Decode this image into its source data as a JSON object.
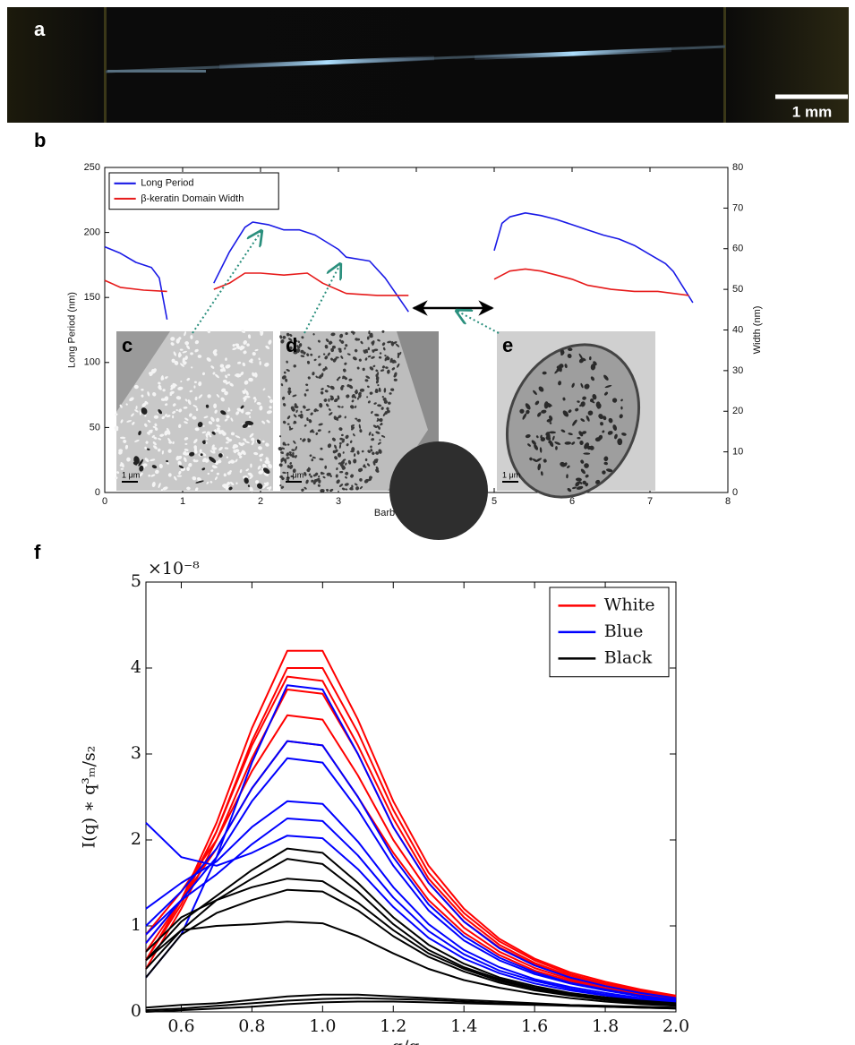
{
  "figure": {
    "panel_a": "a",
    "panel_b": "b",
    "panel_c": "c",
    "panel_d": "d",
    "panel_e": "e",
    "panel_f": "f",
    "scale_bar_a": "1 mm",
    "scale_bar_inset": "1 μm"
  },
  "chart_data": [
    {
      "type": "line",
      "xlabel": "Barb Position (mm)",
      "ylabel": "Long Period (nm)",
      "y2label": "Width (nm)",
      "xlim": [
        0,
        8
      ],
      "xticks": [
        0,
        1,
        2,
        3,
        4,
        5,
        6,
        7,
        8
      ],
      "ylim": [
        0,
        250
      ],
      "yticks": [
        0,
        50,
        100,
        150,
        200,
        250
      ],
      "y2lim": [
        0,
        80
      ],
      "y2ticks": [
        0,
        10,
        20,
        30,
        40,
        50,
        60,
        70,
        80
      ],
      "legend": "upper left",
      "series": [
        {
          "name": "Long Period",
          "color": "#1a1ae6",
          "x": [
            0,
            0.2,
            0.4,
            0.6,
            0.7,
            0.8,
            1.1,
            1.4,
            1.6,
            1.8,
            1.9,
            2.1,
            2.3,
            2.5,
            2.7,
            3.0,
            3.1,
            3.4,
            3.6,
            3.9,
            4.45,
            5.0,
            5.1,
            5.2,
            5.4,
            5.6,
            5.8,
            6.0,
            6.2,
            6.4,
            6.6,
            6.8,
            7.0,
            7.2,
            7.3,
            7.55
          ],
          "values": [
            189,
            184,
            177,
            173,
            165,
            133,
            null,
            161,
            185,
            204,
            208,
            206,
            202,
            202,
            198,
            187,
            181,
            178,
            165,
            139,
            null,
            186,
            207,
            212,
            215,
            213,
            210,
            206,
            202,
            198,
            195,
            190,
            183,
            176,
            170,
            146
          ]
        },
        {
          "name": "β-keratin Domain Width",
          "color": "#e61a1a",
          "axis": "y2",
          "x": [
            0,
            0.2,
            0.5,
            0.8,
            1.1,
            1.4,
            1.6,
            1.8,
            2.0,
            2.3,
            2.6,
            2.8,
            3.1,
            3.5,
            3.9,
            4.45,
            5.0,
            5.2,
            5.4,
            5.6,
            5.8,
            6.0,
            6.2,
            6.5,
            6.8,
            7.1,
            7.5
          ],
          "values": [
            52.2,
            50.5,
            49.8,
            49.5,
            null,
            50,
            51.5,
            54,
            54,
            53.5,
            54,
            51.5,
            49,
            48.5,
            48.5,
            null,
            52.5,
            54.5,
            55,
            54.5,
            53.5,
            52.5,
            51,
            50,
            49.5,
            49.5,
            48.5
          ]
        }
      ]
    },
    {
      "type": "line",
      "xlabel": "q/qₘ",
      "ylabel": "I(q) ∗ q³ₘ/s₂",
      "y_multiplier": "×10⁻⁸",
      "xlim": [
        0.5,
        2.0
      ],
      "xticks": [
        0.6,
        0.8,
        {
          "value": 1,
          "label": "1.0"
        },
        1.2,
        1.4,
        1.6,
        1.8,
        {
          "value": 2,
          "label": "2.0"
        }
      ],
      "ylim": [
        0,
        5
      ],
      "yticks": [
        0,
        1,
        2,
        3,
        4,
        5
      ],
      "legend": "upper right",
      "x": [
        0.5,
        0.6,
        0.7,
        0.8,
        0.9,
        1.0,
        1.1,
        1.2,
        1.3,
        1.4,
        1.5,
        1.6,
        1.7,
        1.8,
        1.9,
        2.0
      ],
      "series": [
        {
          "name": "White",
          "color": "#ff0000",
          "curves": [
            [
              0.7,
              1.3,
              2.2,
              3.3,
              4.2,
              4.2,
              3.4,
              2.45,
              1.7,
              1.2,
              0.85,
              0.62,
              0.46,
              0.35,
              0.26,
              0.19
            ],
            [
              0.6,
              1.25,
              2.1,
              3.15,
              4.0,
              4.0,
              3.25,
              2.35,
              1.62,
              1.15,
              0.82,
              0.6,
              0.44,
              0.33,
              0.25,
              0.18
            ],
            [
              0.8,
              1.3,
              2.1,
              3.1,
              3.9,
              3.85,
              3.1,
              2.25,
              1.55,
              1.1,
              0.78,
              0.57,
              0.42,
              0.32,
              0.24,
              0.18
            ],
            [
              0.5,
              1.2,
              2.0,
              2.95,
              3.75,
              3.7,
              3.0,
              2.15,
              1.5,
              1.05,
              0.75,
              0.55,
              0.4,
              0.3,
              0.23,
              0.17
            ],
            [
              0.9,
              1.4,
              2.0,
              2.8,
              3.45,
              3.4,
              2.75,
              2.0,
              1.4,
              0.98,
              0.7,
              0.51,
              0.38,
              0.28,
              0.21,
              0.16
            ],
            [
              0.6,
              1.3,
              1.9,
              2.6,
              3.15,
              3.1,
              2.5,
              1.85,
              1.3,
              0.92,
              0.66,
              0.48,
              0.36,
              0.27,
              0.2,
              0.15
            ]
          ]
        },
        {
          "name": "Blue",
          "color": "#0000ff",
          "curves": [
            [
              0.4,
              0.9,
              1.8,
              2.9,
              3.8,
              3.75,
              3.0,
              2.15,
              1.5,
              1.05,
              0.74,
              0.54,
              0.4,
              0.3,
              0.22,
              0.16
            ],
            [
              1.0,
              1.4,
              1.9,
              2.6,
              3.15,
              3.1,
              2.5,
              1.8,
              1.25,
              0.88,
              0.63,
              0.46,
              0.34,
              0.26,
              0.19,
              0.14
            ],
            [
              0.8,
              1.3,
              1.8,
              2.45,
              2.95,
              2.9,
              2.35,
              1.7,
              1.18,
              0.83,
              0.6,
              0.44,
              0.33,
              0.25,
              0.18,
              0.13
            ],
            [
              1.2,
              1.5,
              1.75,
              2.15,
              2.45,
              2.42,
              1.98,
              1.45,
              1.02,
              0.72,
              0.52,
              0.38,
              0.29,
              0.22,
              0.16,
              0.12
            ],
            [
              0.9,
              1.3,
              1.6,
              1.95,
              2.25,
              2.22,
              1.82,
              1.33,
              0.94,
              0.67,
              0.48,
              0.36,
              0.27,
              0.2,
              0.15,
              0.11
            ],
            [
              2.2,
              1.8,
              1.7,
              1.85,
              2.05,
              2.02,
              1.66,
              1.22,
              0.86,
              0.62,
              0.45,
              0.33,
              0.25,
              0.19,
              0.14,
              0.1
            ]
          ]
        },
        {
          "name": "Black",
          "color": "#000000",
          "curves": [
            [
              0.6,
              1.05,
              1.35,
              1.65,
              1.9,
              1.85,
              1.5,
              1.1,
              0.78,
              0.56,
              0.4,
              0.3,
              0.22,
              0.17,
              0.13,
              0.1
            ],
            [
              0.5,
              0.95,
              1.3,
              1.55,
              1.78,
              1.72,
              1.4,
              1.02,
              0.72,
              0.52,
              0.38,
              0.28,
              0.21,
              0.16,
              0.12,
              0.09
            ],
            [
              0.7,
              1.1,
              1.3,
              1.45,
              1.55,
              1.52,
              1.27,
              0.95,
              0.68,
              0.5,
              0.36,
              0.27,
              0.2,
              0.15,
              0.11,
              0.08
            ],
            [
              0.4,
              0.9,
              1.15,
              1.3,
              1.42,
              1.4,
              1.18,
              0.88,
              0.64,
              0.47,
              0.34,
              0.25,
              0.19,
              0.14,
              0.1,
              0.08
            ],
            [
              0.6,
              0.95,
              1.0,
              1.02,
              1.05,
              1.03,
              0.88,
              0.68,
              0.5,
              0.37,
              0.28,
              0.21,
              0.16,
              0.12,
              0.09,
              0.07
            ],
            [
              0.05,
              0.08,
              0.1,
              0.14,
              0.18,
              0.2,
              0.2,
              0.18,
              0.16,
              0.14,
              0.12,
              0.1,
              0.08,
              0.07,
              0.06,
              0.05
            ],
            [
              0.02,
              0.04,
              0.07,
              0.1,
              0.13,
              0.15,
              0.16,
              0.15,
              0.14,
              0.12,
              0.1,
              0.09,
              0.07,
              0.06,
              0.05,
              0.04
            ],
            [
              0.0,
              0.02,
              0.04,
              0.06,
              0.09,
              0.11,
              0.12,
              0.12,
              0.11,
              0.1,
              0.09,
              0.08,
              0.07,
              0.06,
              0.05,
              0.04
            ]
          ]
        }
      ]
    }
  ]
}
